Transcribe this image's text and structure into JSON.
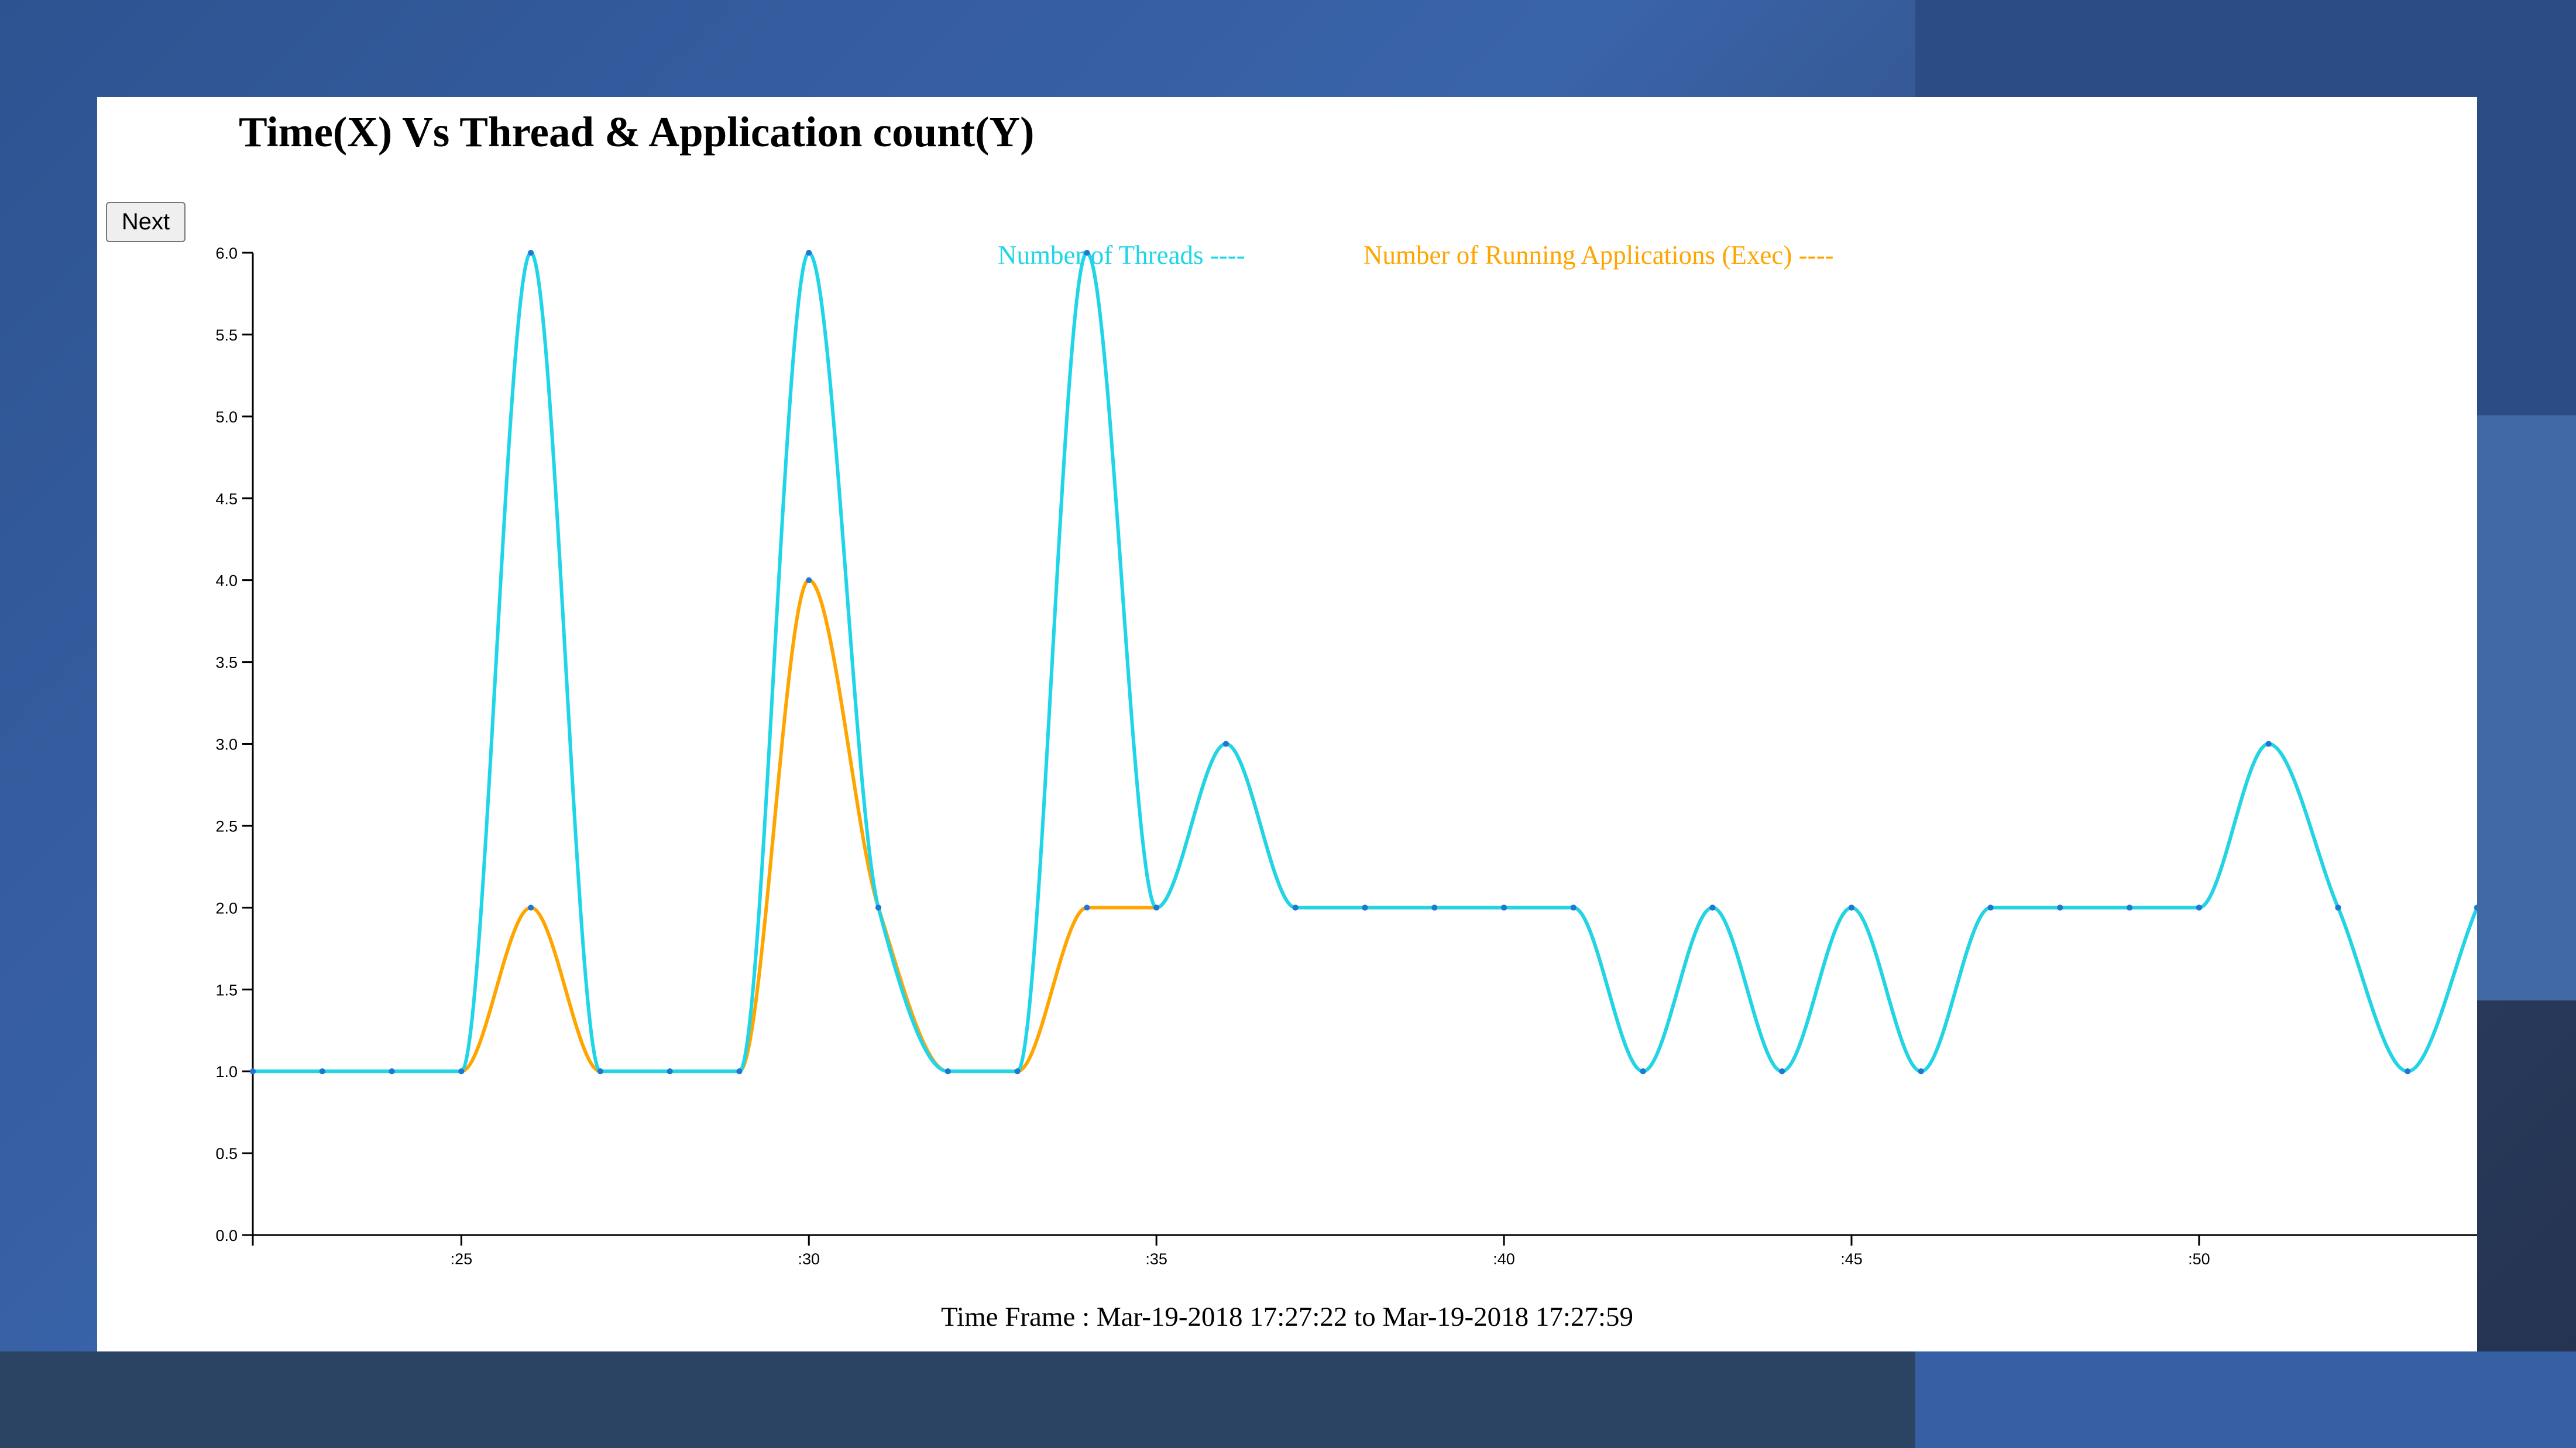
{
  "chart_data": {
    "type": "line",
    "title": "Time(X) Vs Thread & Application count(Y)",
    "footer": "Time Frame : Mar-19-2018 17:27:22 to Mar-19-2018 17:27:59",
    "button_label": "Next",
    "x": [
      22,
      23,
      24,
      25,
      26,
      27,
      28,
      29,
      30,
      31,
      32,
      33,
      34,
      35,
      36,
      37,
      38,
      39,
      40,
      41,
      42,
      43,
      44,
      45,
      46,
      47,
      48,
      49,
      50,
      51,
      52,
      53,
      54
    ],
    "xlim": [
      22,
      54
    ],
    "x_ticks": [
      25,
      30,
      35,
      40,
      45,
      50
    ],
    "x_tick_labels": [
      ":25",
      ":30",
      ":35",
      ":40",
      ":45",
      ":50"
    ],
    "ylim": [
      0,
      6
    ],
    "y_ticks": [
      "0.0",
      "0.5",
      "1.0",
      "1.5",
      "2.0",
      "2.5",
      "3.0",
      "3.5",
      "4.0",
      "4.5",
      "5.0",
      "5.5",
      "6.0"
    ],
    "series": [
      {
        "name": "Number of Running Applications (Exec) ----",
        "color": "#ffa500",
        "values": [
          1,
          1,
          1,
          1,
          2,
          1,
          1,
          1,
          4,
          2,
          1,
          1,
          2,
          2,
          3,
          2,
          2,
          2,
          2,
          2,
          1,
          2,
          1,
          2,
          1,
          2,
          2,
          2,
          2,
          3,
          2,
          1,
          2
        ]
      },
      {
        "name": "Number of Threads ----",
        "color": "#1fd5e8",
        "values": [
          1,
          1,
          1,
          1,
          6,
          1,
          1,
          1,
          6,
          2,
          1,
          1,
          6,
          2,
          3,
          2,
          2,
          2,
          2,
          2,
          1,
          2,
          1,
          2,
          1,
          2,
          2,
          2,
          2,
          3,
          2,
          1,
          2
        ]
      }
    ],
    "point_color": "#1f77d4",
    "grid": false,
    "legend_position": "top-center"
  }
}
